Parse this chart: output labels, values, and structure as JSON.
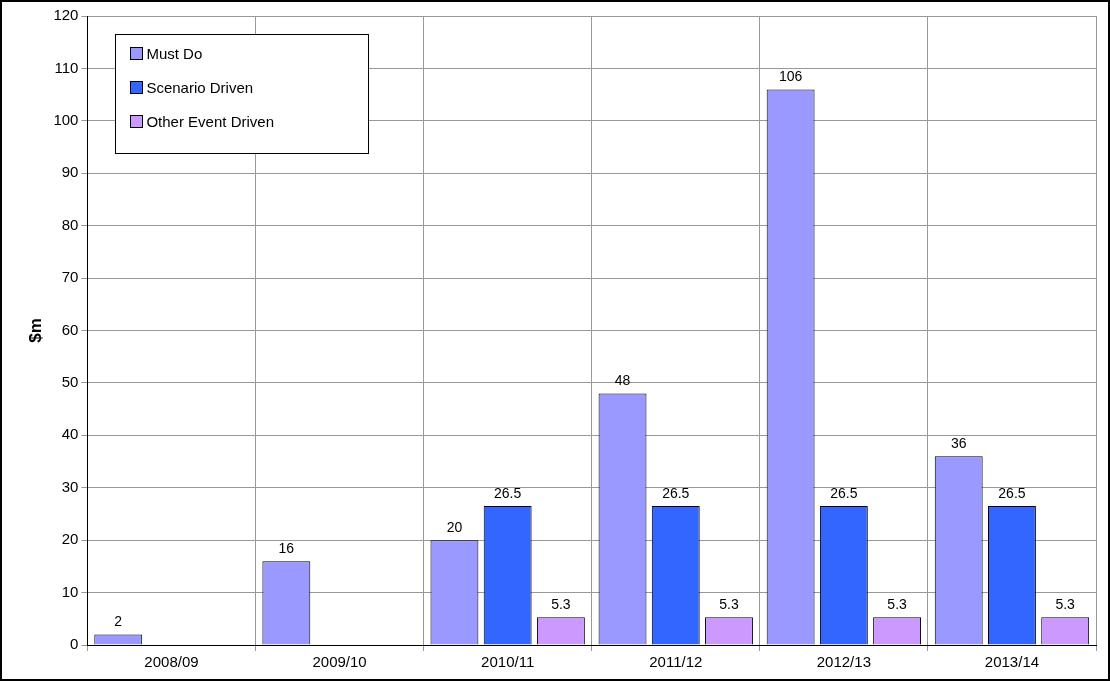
{
  "chart_data": {
    "type": "bar",
    "ylabel": "$m",
    "categories": [
      "2008/09",
      "2009/10",
      "2010/11",
      "2011/12",
      "2012/13",
      "2013/14"
    ],
    "series": [
      {
        "name": "Must Do",
        "color": "#9999ff",
        "values": [
          2,
          16,
          20,
          48,
          106,
          36
        ]
      },
      {
        "name": "Scenario Driven",
        "color": "#3366ff",
        "values": [
          null,
          null,
          26.5,
          26.5,
          26.5,
          26.5
        ]
      },
      {
        "name": "Other Event Driven",
        "color": "#cc99ff",
        "values": [
          null,
          null,
          5.3,
          5.3,
          5.3,
          5.3
        ]
      }
    ],
    "ylim": [
      0,
      120
    ],
    "yticks": [
      0,
      10,
      20,
      30,
      40,
      50,
      60,
      70,
      80,
      90,
      100,
      110,
      120
    ],
    "grid": true,
    "legend": "top left",
    "data_labels": true
  }
}
